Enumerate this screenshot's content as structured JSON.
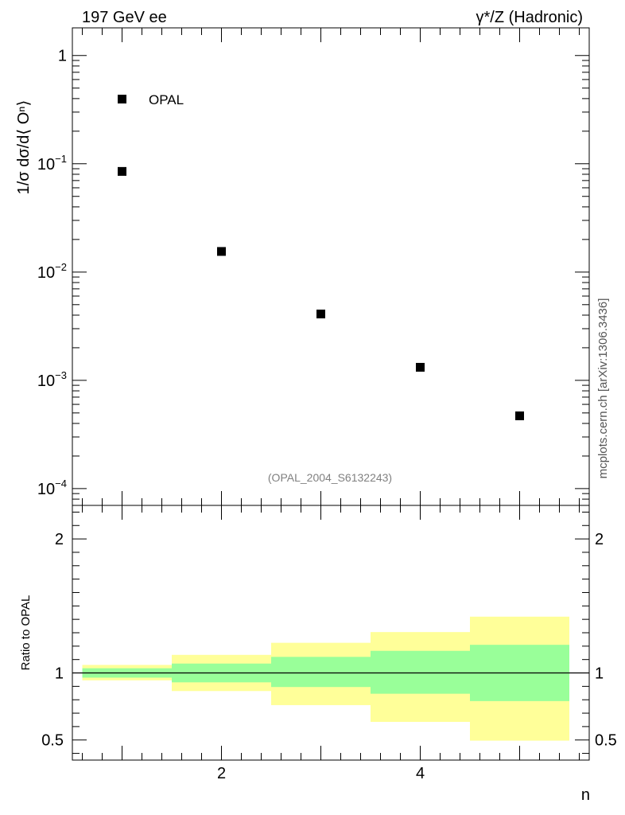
{
  "header": {
    "left_title": "197 GeV ee",
    "right_title": "γ*/Z (Hadronic)"
  },
  "side_label": "mcplots.cern.ch [arXiv:1306.3436]",
  "chart_data": [
    {
      "type": "scatter",
      "panel": "main",
      "ylabel": "1/σ dσ/d⟨ Oⁿ⟩",
      "yscale": "log",
      "ylim": [
        7e-05,
        1.8
      ],
      "xlim": [
        0.5,
        5.7
      ],
      "x_ticks": [
        2,
        4
      ],
      "y_ticks": [
        {
          "value": 1,
          "label": "1"
        },
        {
          "value": 0.1,
          "label": "10",
          "exp": "−1"
        },
        {
          "value": 0.01,
          "label": "10",
          "exp": "−2"
        },
        {
          "value": 0.001,
          "label": "10",
          "exp": "−3"
        },
        {
          "value": 0.0001,
          "label": "10",
          "exp": "−4"
        }
      ],
      "series": [
        {
          "name": "OPAL",
          "color": "#000000",
          "marker": "square",
          "x": [
            1,
            2,
            3,
            4,
            5
          ],
          "y": [
            0.085,
            0.0155,
            0.0041,
            0.00132,
            0.00047
          ]
        }
      ],
      "legend_position": "top-left",
      "annotation": "(OPAL_2004_S6132243)"
    },
    {
      "type": "area",
      "panel": "ratio",
      "ylabel": "Ratio to OPAL",
      "xlabel": "n",
      "ylim": [
        0.35,
        2.25
      ],
      "xlim": [
        0.5,
        5.7
      ],
      "x_ticks": [
        2,
        4
      ],
      "y_ticks": [
        {
          "value": 0.5,
          "label": "0.5"
        },
        {
          "value": 1,
          "label": "1"
        },
        {
          "value": 2,
          "label": "2"
        }
      ],
      "reference_line": 1,
      "bins": [
        {
          "x_low": 0.6,
          "x_high": 1.5,
          "inner_low": 0.965,
          "inner_high": 1.035,
          "outer_low": 0.945,
          "outer_high": 1.06
        },
        {
          "x_low": 1.5,
          "x_high": 2.5,
          "inner_low": 0.93,
          "inner_high": 1.07,
          "outer_low": 0.865,
          "outer_high": 1.135
        },
        {
          "x_low": 2.5,
          "x_high": 3.5,
          "inner_low": 0.895,
          "inner_high": 1.12,
          "outer_low": 0.76,
          "outer_high": 1.225
        },
        {
          "x_low": 3.5,
          "x_high": 4.5,
          "inner_low": 0.845,
          "inner_high": 1.165,
          "outer_low": 0.635,
          "outer_high": 1.305
        },
        {
          "x_low": 4.5,
          "x_high": 5.5,
          "inner_low": 0.79,
          "inner_high": 1.21,
          "outer_low": 0.495,
          "outer_high": 1.42
        }
      ],
      "colors": {
        "inner": "#99ff99",
        "outer": "#ffff99",
        "line": "#000000"
      }
    }
  ]
}
